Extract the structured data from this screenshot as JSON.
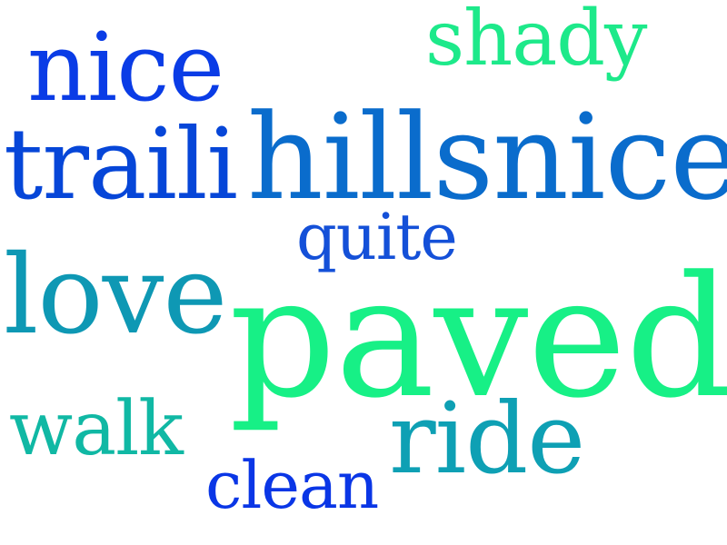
{
  "words": [
    {
      "id": "w-nice1",
      "text": "nice",
      "color": "#0a3ce6"
    },
    {
      "id": "w-shady",
      "text": "shady",
      "color": "#1de98a"
    },
    {
      "id": "w-traili",
      "text": "traili",
      "color": "#0646d8"
    },
    {
      "id": "w-hills",
      "text": "hillsnice",
      "color": "#0a6ccc"
    },
    {
      "id": "w-quite",
      "text": "quite",
      "color": "#1450d8"
    },
    {
      "id": "w-love",
      "text": "love",
      "color": "#0e98b4"
    },
    {
      "id": "w-paved",
      "text": "paved",
      "color": "#17f086"
    },
    {
      "id": "w-walk",
      "text": "walk",
      "color": "#10b8a4"
    },
    {
      "id": "w-ride",
      "text": "ride",
      "color": "#0ea0b4"
    },
    {
      "id": "w-clean",
      "text": "clean",
      "color": "#0a36e6"
    }
  ]
}
